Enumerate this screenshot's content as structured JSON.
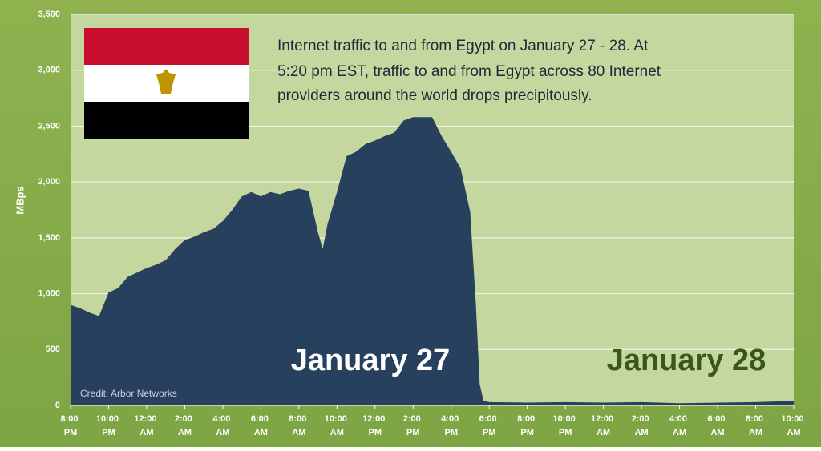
{
  "chart_data": {
    "type": "area",
    "title": [
      "Internet traffic to and from Egypt on January 27 - 28. At",
      "5:20 pm EST, traffic to and from Egypt across 80 Internet",
      "providers around the world  drops precipitously."
    ],
    "ylabel": "MBps",
    "annotations": [
      "January 27",
      "January 28",
      "Credit: Arbor Networks"
    ],
    "x": [
      0,
      0.5,
      1,
      1.5,
      2,
      2.5,
      3,
      3.5,
      4,
      4.5,
      5,
      5.5,
      6,
      6.5,
      7,
      7.5,
      8,
      8.5,
      9,
      9.5,
      10,
      10.5,
      11,
      11.5,
      12,
      12.5,
      13,
      13.25,
      13.5,
      14,
      14.5,
      15,
      15.5,
      16,
      16.5,
      17,
      17.5,
      18,
      18.5,
      19,
      19.5,
      20,
      20.5,
      21,
      21.3,
      21.5,
      21.7,
      22,
      24,
      26,
      28,
      30,
      32,
      34,
      36,
      38
    ],
    "values": [
      900,
      870,
      830,
      800,
      1010,
      1050,
      1150,
      1190,
      1230,
      1260,
      1300,
      1400,
      1480,
      1510,
      1550,
      1580,
      1650,
      1750,
      1870,
      1910,
      1870,
      1910,
      1890,
      1920,
      1940,
      1920,
      1550,
      1400,
      1620,
      1910,
      2230,
      2270,
      2340,
      2370,
      2410,
      2440,
      2550,
      2580,
      2580,
      2580,
      2410,
      2270,
      2120,
      1730,
      900,
      190,
      40,
      30,
      25,
      30,
      25,
      30,
      20,
      25,
      30,
      40
    ],
    "color": "#27405e",
    "xlim": [
      0,
      38
    ],
    "xticks": [
      {
        "value": 0,
        "label": "8:00 PM"
      },
      {
        "value": 2,
        "label": "10:00 PM"
      },
      {
        "value": 4,
        "label": "12:00 AM"
      },
      {
        "value": 6,
        "label": "2:00 AM"
      },
      {
        "value": 8,
        "label": "4:00 AM"
      },
      {
        "value": 10,
        "label": "6:00 AM"
      },
      {
        "value": 12,
        "label": "8:00 AM"
      },
      {
        "value": 14,
        "label": "10:00 AM"
      },
      {
        "value": 16,
        "label": "12:00 PM"
      },
      {
        "value": 18,
        "label": "2:00 PM"
      },
      {
        "value": 20,
        "label": "4:00 PM"
      },
      {
        "value": 22,
        "label": "6:00 PM"
      },
      {
        "value": 24,
        "label": "8:00 PM"
      },
      {
        "value": 26,
        "label": "10:00 PM"
      },
      {
        "value": 28,
        "label": "12:00 AM"
      },
      {
        "value": 30,
        "label": "2:00 AM"
      },
      {
        "value": 32,
        "label": "4:00 AM"
      },
      {
        "value": 34,
        "label": "6:00 AM"
      },
      {
        "value": 36,
        "label": "8:00 AM"
      },
      {
        "value": 38,
        "label": "10:00 AM"
      }
    ],
    "ylim": [
      0,
      3500
    ],
    "yticks": [
      0,
      500,
      {
        "value": 1000,
        "label": "1,000"
      },
      {
        "value": 1500,
        "label": "1,500"
      },
      {
        "value": 2000,
        "label": "2,000"
      },
      {
        "value": 2500,
        "label": "2,500"
      },
      {
        "value": 3000,
        "label": "3,000"
      },
      {
        "value": 3500,
        "label": "3,500"
      }
    ],
    "grid": true
  }
}
